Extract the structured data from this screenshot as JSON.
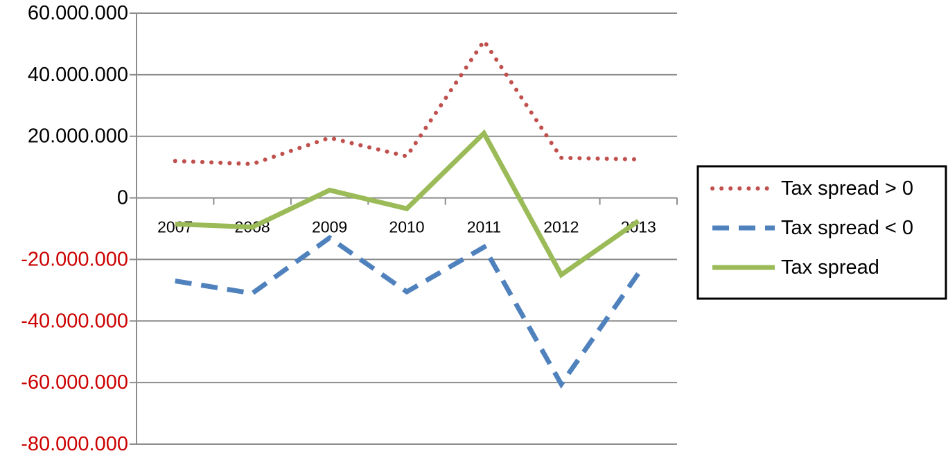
{
  "chart_data": {
    "type": "line",
    "title": "",
    "xlabel": "",
    "ylabel": "",
    "categories": [
      "2007",
      "2008",
      "2009",
      "2010",
      "2011",
      "2012",
      "2013"
    ],
    "ylim": [
      -80000000,
      60000000
    ],
    "y_ticks": [
      {
        "value": 60000000,
        "label": "60.000.000"
      },
      {
        "value": 40000000,
        "label": "40.000.000"
      },
      {
        "value": 20000000,
        "label": "20.000.000"
      },
      {
        "value": 0,
        "label": "0"
      },
      {
        "value": -20000000,
        "label": "-20.000.000"
      },
      {
        "value": -40000000,
        "label": "-40.000.000"
      },
      {
        "value": -60000000,
        "label": "-60.000.000"
      },
      {
        "value": -80000000,
        "label": "-80.000.000"
      }
    ],
    "grid": true,
    "legend_position": "right",
    "series": [
      {
        "name": "Tax spread > 0",
        "style": "dotted",
        "color": "#c0504d",
        "values": [
          12000000,
          11000000,
          19500000,
          13500000,
          51000000,
          13000000,
          12500000
        ]
      },
      {
        "name": "Tax spread < 0",
        "style": "dashed",
        "color": "#4f81bd",
        "values": [
          -27000000,
          -31000000,
          -13000000,
          -30500000,
          -16000000,
          -60500000,
          -24500000
        ]
      },
      {
        "name": "Tax spread",
        "style": "solid",
        "color": "#9bbb59",
        "values": [
          -8500000,
          -9500000,
          2500000,
          -3500000,
          21000000,
          -25000000,
          -7500000
        ]
      }
    ],
    "colors": {
      "positive_tick": "#000000",
      "negative_tick": "#cc0000",
      "grid": "#8c8c8c"
    }
  }
}
